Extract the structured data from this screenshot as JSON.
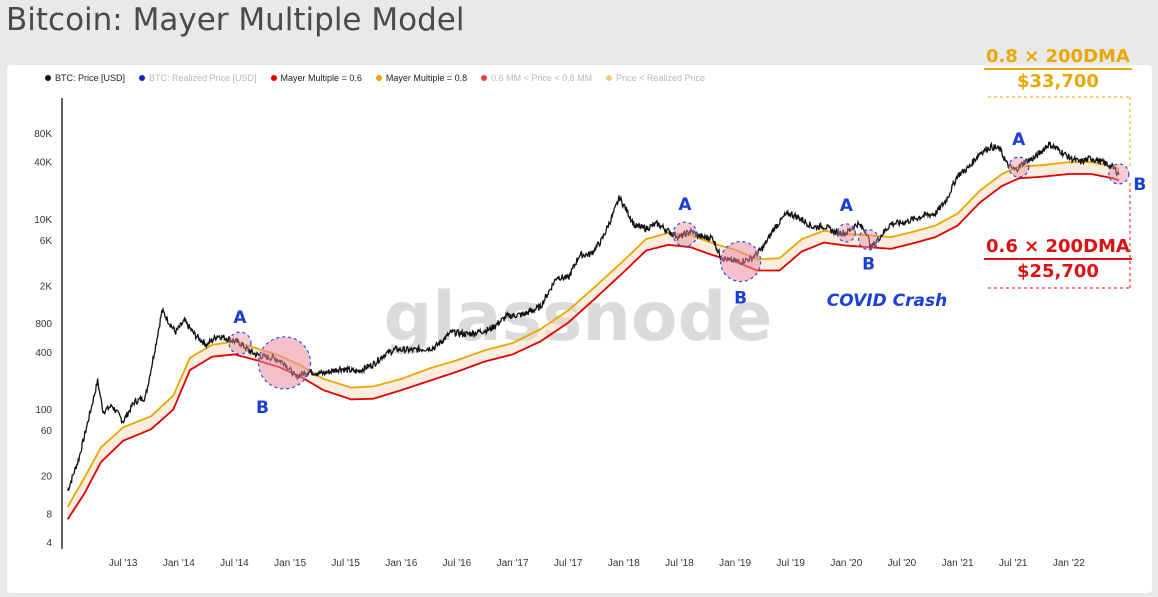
{
  "title": "Bitcoin: Mayer Multiple Model",
  "legend": [
    {
      "label": "BTC: Price [USD]",
      "color": "#111111",
      "faded": false
    },
    {
      "label": "BTC: Realized Price [USD]",
      "color": "#1f1fbf",
      "faded": true
    },
    {
      "label": "Mayer Multiple = 0.6",
      "color": "#e00000",
      "faded": false
    },
    {
      "label": "Mayer Multiple = 0.8",
      "color": "#e8a800",
      "faded": false
    },
    {
      "label": "0.6 MM < Price < 0.8 MM",
      "color": "#f04040",
      "faded": true
    },
    {
      "label": "Price < Realized Price",
      "color": "#f2c98a",
      "faded": true
    }
  ],
  "watermark": "glassnode",
  "upper_label": {
    "line1": "0.8 × 200DMA",
    "line2": "$33,700",
    "color": "#e8a800"
  },
  "lower_label": {
    "line1": "0.6 × 200DMA",
    "line2": "$25,700",
    "color": "#dd1111"
  },
  "covid_label": "COVID Crash",
  "markers": [
    {
      "letter": "A",
      "date": 2014.55
    },
    {
      "letter": "B",
      "date": 2014.95
    },
    {
      "letter": "A",
      "date": 2018.55
    },
    {
      "letter": "B",
      "date": 2019.05
    },
    {
      "letter": "A",
      "date": 2020.0
    },
    {
      "letter": "B",
      "date": 2020.2
    },
    {
      "letter": "A",
      "date": 2021.55
    },
    {
      "letter": "B",
      "date": 2022.45
    }
  ],
  "chart_data": {
    "type": "line",
    "title": "Bitcoin: Mayer Multiple Model",
    "xlabel": "",
    "ylabel": "",
    "yscale": "log",
    "ylim": [
      3.5,
      180000
    ],
    "xlim": [
      2012.95,
      2022.55
    ],
    "x_ticks": [
      {
        "label": "Jul '13",
        "value": 2013.5
      },
      {
        "label": "Jan '14",
        "value": 2014.0
      },
      {
        "label": "Jul '14",
        "value": 2014.5
      },
      {
        "label": "Jan '15",
        "value": 2015.0
      },
      {
        "label": "Jul '15",
        "value": 2015.5
      },
      {
        "label": "Jan '16",
        "value": 2016.0
      },
      {
        "label": "Jul '16",
        "value": 2016.5
      },
      {
        "label": "Jan '17",
        "value": 2017.0
      },
      {
        "label": "Jul '17",
        "value": 2017.5
      },
      {
        "label": "Jan '18",
        "value": 2018.0
      },
      {
        "label": "Jul '18",
        "value": 2018.5
      },
      {
        "label": "Jan '19",
        "value": 2019.0
      },
      {
        "label": "Jul '19",
        "value": 2019.5
      },
      {
        "label": "Jan '20",
        "value": 2020.0
      },
      {
        "label": "Jul '20",
        "value": 2020.5
      },
      {
        "label": "Jan '21",
        "value": 2021.0
      },
      {
        "label": "Jul '21",
        "value": 2021.5
      },
      {
        "label": "Jan '22",
        "value": 2022.0
      }
    ],
    "y_ticks": [
      {
        "label": "4",
        "value": 4
      },
      {
        "label": "8",
        "value": 8
      },
      {
        "label": "20",
        "value": 20
      },
      {
        "label": "60",
        "value": 60
      },
      {
        "label": "100",
        "value": 100
      },
      {
        "label": "400",
        "value": 400
      },
      {
        "label": "800",
        "value": 800
      },
      {
        "label": "2K",
        "value": 2000
      },
      {
        "label": "6K",
        "value": 6000
      },
      {
        "label": "10K",
        "value": 10000
      },
      {
        "label": "40K",
        "value": 40000
      },
      {
        "label": "80K",
        "value": 80000
      }
    ],
    "series": [
      {
        "name": "BTC: Price [USD]",
        "color": "#111111",
        "x": [
          2013.0,
          2013.1,
          2013.2,
          2013.27,
          2013.32,
          2013.4,
          2013.5,
          2013.6,
          2013.7,
          2013.78,
          2013.85,
          2013.92,
          2013.97,
          2014.05,
          2014.15,
          2014.25,
          2014.35,
          2014.45,
          2014.55,
          2014.65,
          2014.75,
          2014.85,
          2014.95,
          2015.05,
          2015.15,
          2015.3,
          2015.45,
          2015.6,
          2015.75,
          2015.85,
          2015.95,
          2016.1,
          2016.3,
          2016.45,
          2016.6,
          2016.8,
          2016.95,
          2017.1,
          2017.25,
          2017.4,
          2017.5,
          2017.6,
          2017.7,
          2017.8,
          2017.9,
          2017.96,
          2018.05,
          2018.1,
          2018.2,
          2018.3,
          2018.4,
          2018.5,
          2018.6,
          2018.7,
          2018.8,
          2018.87,
          2018.95,
          2019.05,
          2019.15,
          2019.25,
          2019.35,
          2019.45,
          2019.5,
          2019.6,
          2019.7,
          2019.8,
          2019.9,
          2020.0,
          2020.1,
          2020.18,
          2020.22,
          2020.3,
          2020.4,
          2020.5,
          2020.6,
          2020.7,
          2020.8,
          2020.9,
          2021.0,
          2021.1,
          2021.2,
          2021.3,
          2021.38,
          2021.45,
          2021.52,
          2021.6,
          2021.7,
          2021.82,
          2021.9,
          2022.0,
          2022.1,
          2022.2,
          2022.3,
          2022.4,
          2022.45
        ],
        "y": [
          14,
          30,
          90,
          200,
          95,
          110,
          75,
          120,
          135,
          400,
          1100,
          800,
          650,
          850,
          600,
          480,
          600,
          550,
          500,
          400,
          360,
          350,
          310,
          220,
          250,
          240,
          270,
          250,
          300,
          380,
          430,
          420,
          450,
          650,
          620,
          700,
          960,
          1000,
          1200,
          2500,
          2400,
          4200,
          4300,
          6000,
          11000,
          17000,
          11000,
          8500,
          8000,
          9000,
          7500,
          6500,
          7500,
          6500,
          6400,
          4000,
          3700,
          3600,
          3900,
          5000,
          8000,
          11000,
          11500,
          10000,
          8300,
          8500,
          7300,
          7200,
          9000,
          7500,
          5000,
          6500,
          9000,
          9200,
          10000,
          11000,
          11500,
          16000,
          29000,
          35000,
          50000,
          58000,
          55000,
          37000,
          33000,
          40000,
          45000,
          62000,
          55000,
          45000,
          40000,
          44000,
          40000,
          35000,
          30000
        ]
      },
      {
        "name": "Mayer Multiple = 0.8",
        "color": "#e8a800",
        "x": [
          2013.0,
          2013.15,
          2013.3,
          2013.5,
          2013.75,
          2013.95,
          2014.1,
          2014.3,
          2014.5,
          2014.7,
          2014.9,
          2015.1,
          2015.3,
          2015.55,
          2015.75,
          2016.0,
          2016.25,
          2016.5,
          2016.75,
          2017.0,
          2017.25,
          2017.5,
          2017.75,
          2018.0,
          2018.2,
          2018.4,
          2018.6,
          2018.8,
          2019.0,
          2019.2,
          2019.4,
          2019.6,
          2019.8,
          2020.0,
          2020.2,
          2020.4,
          2020.6,
          2020.8,
          2021.0,
          2021.2,
          2021.4,
          2021.55,
          2021.75,
          2022.0,
          2022.2,
          2022.4,
          2022.45
        ],
        "y": [
          9.5,
          19,
          40,
          65,
          85,
          140,
          350,
          480,
          520,
          440,
          370,
          290,
          210,
          170,
          175,
          210,
          270,
          330,
          420,
          500,
          700,
          1100,
          2000,
          3700,
          6200,
          7200,
          6800,
          5600,
          4800,
          3800,
          3900,
          6200,
          7600,
          7000,
          6800,
          6500,
          7400,
          8600,
          11500,
          20000,
          30000,
          36000,
          37000,
          40000,
          40000,
          36000,
          33700
        ]
      },
      {
        "name": "Mayer Multiple = 0.6",
        "color": "#e00000",
        "x": [
          2013.0,
          2013.15,
          2013.3,
          2013.5,
          2013.75,
          2013.95,
          2014.1,
          2014.3,
          2014.5,
          2014.7,
          2014.9,
          2015.1,
          2015.3,
          2015.55,
          2015.75,
          2016.0,
          2016.25,
          2016.5,
          2016.75,
          2017.0,
          2017.25,
          2017.5,
          2017.75,
          2018.0,
          2018.2,
          2018.4,
          2018.6,
          2018.8,
          2019.0,
          2019.2,
          2019.4,
          2019.6,
          2019.8,
          2020.0,
          2020.2,
          2020.4,
          2020.6,
          2020.8,
          2021.0,
          2021.2,
          2021.4,
          2021.55,
          2021.75,
          2022.0,
          2022.2,
          2022.4,
          2022.45
        ],
        "y": [
          7,
          13,
          28,
          47,
          62,
          100,
          260,
          360,
          380,
          330,
          280,
          220,
          160,
          128,
          130,
          160,
          200,
          250,
          320,
          380,
          520,
          820,
          1500,
          2800,
          4700,
          5400,
          5100,
          4200,
          3600,
          2900,
          2900,
          4600,
          5700,
          5300,
          5100,
          4900,
          5600,
          6500,
          8600,
          15000,
          22500,
          27000,
          28000,
          30000,
          30000,
          27000,
          25700
        ]
      }
    ]
  }
}
